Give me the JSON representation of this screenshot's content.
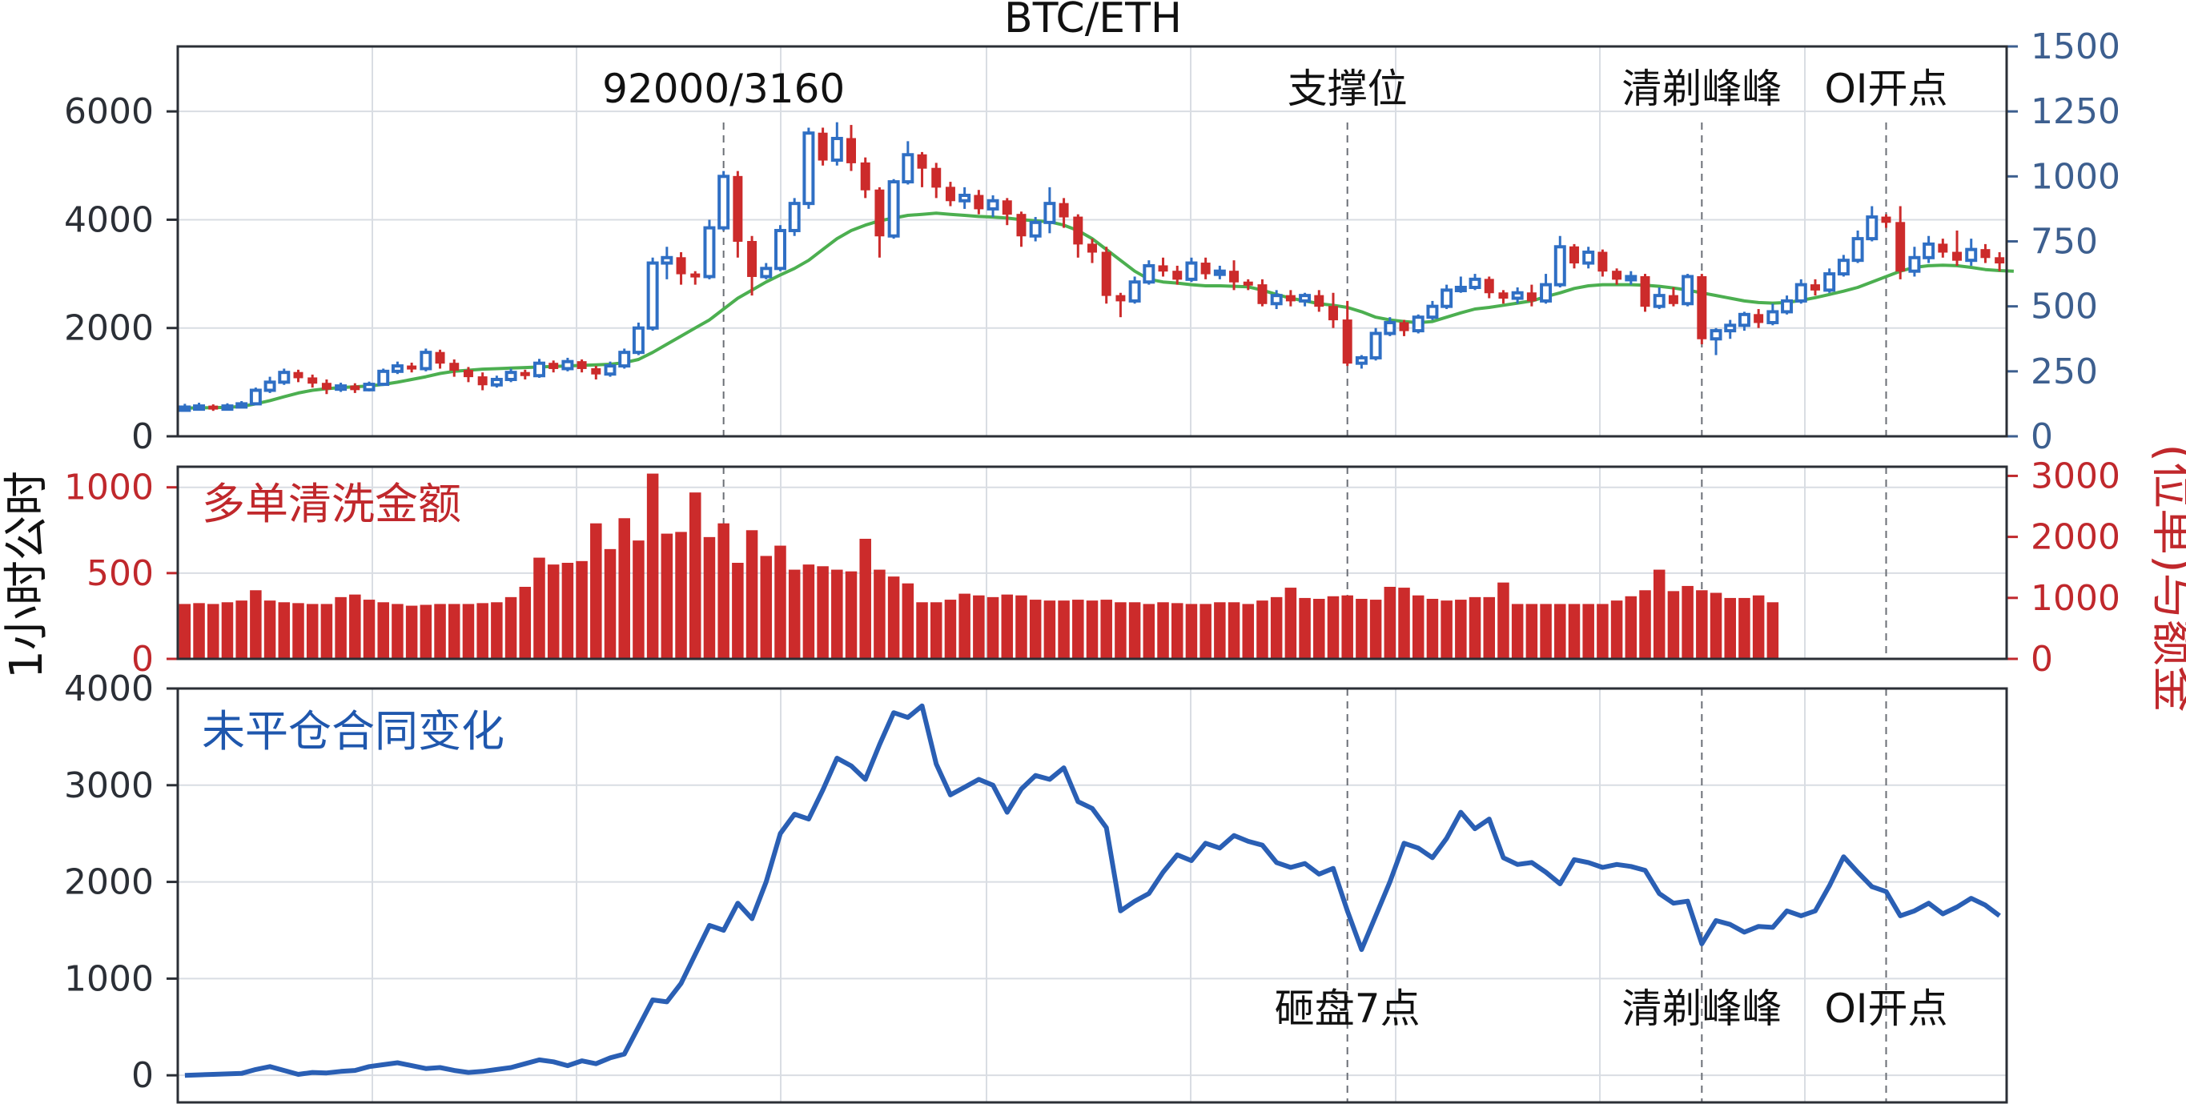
{
  "title": "BTC/ETH",
  "colors": {
    "up": "#2f6fc4",
    "down": "#cc2b2b",
    "ma": "#4caf50",
    "oi": "#2a5fb4",
    "right_axis": "#3d5f8f",
    "liq_axis": "#c0282c",
    "text": "#2b2f36"
  },
  "chart_data": [
    {
      "type": "candlestick",
      "panel": "price",
      "ylim_left": [
        0,
        7200
      ],
      "yticks_left": [
        "0",
        "2000",
        "4000",
        "6000"
      ],
      "ylim_right": [
        0,
        1500
      ],
      "yticks_right": [
        "0",
        "250",
        "500",
        "750",
        "1000",
        "1250",
        "1500"
      ],
      "candles": [
        [
          520,
          540,
          460,
          600
        ],
        [
          540,
          560,
          480,
          620
        ],
        [
          560,
          530,
          470,
          590
        ],
        [
          530,
          560,
          490,
          610
        ],
        [
          560,
          600,
          520,
          650
        ],
        [
          600,
          850,
          580,
          900
        ],
        [
          850,
          1000,
          800,
          1100
        ],
        [
          1000,
          1180,
          950,
          1250
        ],
        [
          1180,
          1080,
          1000,
          1230
        ],
        [
          1080,
          980,
          900,
          1140
        ],
        [
          980,
          870,
          780,
          1050
        ],
        [
          870,
          930,
          820,
          990
        ],
        [
          930,
          860,
          800,
          980
        ],
        [
          860,
          960,
          830,
          1010
        ],
        [
          960,
          1200,
          930,
          1250
        ],
        [
          1200,
          1300,
          1150,
          1380
        ],
        [
          1300,
          1250,
          1180,
          1360
        ],
        [
          1250,
          1550,
          1200,
          1620
        ],
        [
          1550,
          1350,
          1250,
          1600
        ],
        [
          1350,
          1220,
          1100,
          1420
        ],
        [
          1220,
          1100,
          1000,
          1280
        ],
        [
          1100,
          950,
          850,
          1180
        ],
        [
          950,
          1050,
          900,
          1120
        ],
        [
          1050,
          1180,
          1000,
          1250
        ],
        [
          1180,
          1120,
          1050,
          1230
        ],
        [
          1120,
          1350,
          1080,
          1430
        ],
        [
          1350,
          1250,
          1180,
          1400
        ],
        [
          1250,
          1380,
          1200,
          1450
        ],
        [
          1380,
          1250,
          1180,
          1420
        ],
        [
          1250,
          1150,
          1050,
          1300
        ],
        [
          1150,
          1300,
          1100,
          1380
        ],
        [
          1300,
          1550,
          1250,
          1620
        ],
        [
          1550,
          2000,
          1500,
          2100
        ],
        [
          2000,
          3200,
          1950,
          3300
        ],
        [
          3200,
          3300,
          2900,
          3500
        ],
        [
          3300,
          3000,
          2800,
          3400
        ],
        [
          3000,
          2950,
          2800,
          3050
        ],
        [
          2950,
          3850,
          2900,
          4000
        ],
        [
          3850,
          4800,
          3800,
          4900
        ],
        [
          4800,
          3600,
          3300,
          4900
        ],
        [
          3600,
          2950,
          2600,
          3700
        ],
        [
          2950,
          3100,
          2900,
          3200
        ],
        [
          3100,
          3800,
          3050,
          3900
        ],
        [
          3800,
          4300,
          3700,
          4400
        ],
        [
          4300,
          5600,
          4200,
          5700
        ],
        [
          5600,
          5100,
          5000,
          5700
        ],
        [
          5100,
          5500,
          5000,
          5800
        ],
        [
          5500,
          5050,
          4900,
          5750
        ],
        [
          5050,
          4550,
          4400,
          5150
        ],
        [
          4550,
          3700,
          3300,
          4600
        ],
        [
          3700,
          4700,
          3650,
          4750
        ],
        [
          4700,
          5200,
          4650,
          5450
        ],
        [
          5200,
          4950,
          4600,
          5250
        ],
        [
          4950,
          4600,
          4400,
          5050
        ],
        [
          4600,
          4350,
          4250,
          4700
        ],
        [
          4350,
          4450,
          4200,
          4600
        ],
        [
          4450,
          4200,
          4100,
          4550
        ],
        [
          4200,
          4350,
          4050,
          4450
        ],
        [
          4350,
          4100,
          3900,
          4400
        ],
        [
          4100,
          3700,
          3500,
          4150
        ],
        [
          3700,
          3950,
          3600,
          4050
        ],
        [
          3950,
          4300,
          3750,
          4600
        ],
        [
          4300,
          4050,
          3850,
          4400
        ],
        [
          4050,
          3550,
          3300,
          4100
        ],
        [
          3550,
          3400,
          3200,
          3650
        ],
        [
          3400,
          2600,
          2450,
          3500
        ],
        [
          2600,
          2500,
          2200,
          2650
        ],
        [
          2500,
          2850,
          2450,
          2950
        ],
        [
          2850,
          3150,
          2800,
          3250
        ],
        [
          3150,
          3050,
          2950,
          3300
        ],
        [
          3050,
          2900,
          2800,
          3150
        ],
        [
          2900,
          3200,
          2850,
          3300
        ],
        [
          3200,
          3000,
          2900,
          3300
        ],
        [
          3000,
          3050,
          2900,
          3150
        ],
        [
          3050,
          2850,
          2700,
          3250
        ],
        [
          2850,
          2800,
          2700,
          2900
        ],
        [
          2800,
          2450,
          2400,
          2900
        ],
        [
          2450,
          2600,
          2350,
          2700
        ],
        [
          2600,
          2500,
          2400,
          2700
        ],
        [
          2500,
          2600,
          2400,
          2650
        ],
        [
          2600,
          2400,
          2300,
          2700
        ],
        [
          2400,
          2150,
          2000,
          2650
        ],
        [
          2150,
          1350,
          1300,
          2500
        ],
        [
          1350,
          1450,
          1250,
          1500
        ],
        [
          1450,
          1900,
          1400,
          2000
        ],
        [
          1900,
          2100,
          1850,
          2200
        ],
        [
          2100,
          1950,
          1850,
          2150
        ],
        [
          1950,
          2200,
          1900,
          2250
        ],
        [
          2200,
          2400,
          2150,
          2500
        ],
        [
          2400,
          2700,
          2350,
          2800
        ],
        [
          2700,
          2750,
          2650,
          2950
        ],
        [
          2750,
          2900,
          2700,
          3000
        ],
        [
          2900,
          2650,
          2550,
          2950
        ],
        [
          2650,
          2550,
          2450,
          2700
        ],
        [
          2550,
          2650,
          2450,
          2750
        ],
        [
          2650,
          2500,
          2400,
          2800
        ],
        [
          2500,
          2800,
          2450,
          3000
        ],
        [
          2800,
          3500,
          2750,
          3700
        ],
        [
          3500,
          3200,
          3100,
          3550
        ],
        [
          3200,
          3400,
          3100,
          3500
        ],
        [
          3400,
          3050,
          2950,
          3450
        ],
        [
          3050,
          2900,
          2800,
          3100
        ],
        [
          2900,
          2950,
          2800,
          3050
        ],
        [
          2950,
          2400,
          2300,
          3000
        ],
        [
          2400,
          2600,
          2350,
          2750
        ],
        [
          2600,
          2450,
          2400,
          2750
        ],
        [
          2450,
          2950,
          2400,
          3000
        ],
        [
          2950,
          1800,
          1700,
          3000
        ],
        [
          1800,
          1950,
          1500,
          2000
        ],
        [
          1950,
          2050,
          1800,
          2150
        ],
        [
          2050,
          2250,
          1950,
          2300
        ],
        [
          2250,
          2100,
          2000,
          2350
        ],
        [
          2100,
          2300,
          2050,
          2450
        ],
        [
          2300,
          2500,
          2250,
          2600
        ],
        [
          2500,
          2800,
          2450,
          2900
        ],
        [
          2800,
          2700,
          2600,
          2900
        ],
        [
          2700,
          3000,
          2650,
          3100
        ],
        [
          3000,
          3250,
          2950,
          3350
        ],
        [
          3250,
          3650,
          3200,
          3800
        ],
        [
          3650,
          4050,
          3600,
          4250
        ],
        [
          4050,
          3950,
          3850,
          4100
        ],
        [
          3950,
          3050,
          2900,
          4250
        ],
        [
          3050,
          3300,
          2950,
          3500
        ],
        [
          3300,
          3550,
          3200,
          3700
        ],
        [
          3550,
          3400,
          3300,
          3650
        ],
        [
          3400,
          3250,
          3150,
          3800
        ],
        [
          3250,
          3450,
          3150,
          3650
        ],
        [
          3450,
          3300,
          3200,
          3550
        ],
        [
          3300,
          3200,
          3050,
          3400
        ]
      ],
      "ma": [
        520,
        525,
        530,
        535,
        550,
        600,
        660,
        730,
        800,
        850,
        880,
        900,
        915,
        930,
        960,
        1000,
        1050,
        1100,
        1160,
        1200,
        1220,
        1240,
        1250,
        1260,
        1270,
        1280,
        1290,
        1300,
        1310,
        1320,
        1330,
        1360,
        1420,
        1550,
        1700,
        1850,
        2000,
        2150,
        2350,
        2550,
        2700,
        2850,
        2980,
        3100,
        3250,
        3450,
        3650,
        3800,
        3900,
        3980,
        4030,
        4080,
        4100,
        4120,
        4100,
        4080,
        4060,
        4050,
        4030,
        4000,
        3980,
        3960,
        3900,
        3800,
        3650,
        3450,
        3250,
        3050,
        2900,
        2850,
        2830,
        2800,
        2780,
        2780,
        2770,
        2760,
        2700,
        2620,
        2550,
        2500,
        2450,
        2420,
        2380,
        2300,
        2200,
        2150,
        2120,
        2100,
        2120,
        2200,
        2280,
        2350,
        2380,
        2420,
        2460,
        2500,
        2580,
        2650,
        2730,
        2780,
        2800,
        2800,
        2800,
        2790,
        2770,
        2740,
        2700,
        2650,
        2600,
        2550,
        2500,
        2470,
        2460,
        2470,
        2510,
        2560,
        2620,
        2680,
        2750,
        2850,
        2950,
        3050,
        3120,
        3150,
        3160,
        3150,
        3120,
        3080,
        3060,
        3050
      ],
      "annotations": [
        {
          "label": "92000/3160",
          "index": 38
        },
        {
          "label": "支撑位",
          "index": 82
        },
        {
          "label": "清剃峰峰",
          "index": 107
        },
        {
          "label": "OI开点",
          "index": 120
        }
      ]
    },
    {
      "type": "bar",
      "panel": "liquidations",
      "label": "多单清洗金额",
      "ylim_left": [
        0,
        1120
      ],
      "yticks_left": [
        "0",
        "500",
        "1000"
      ],
      "ylim_right": [
        0,
        3150
      ],
      "yticks_right": [
        "0",
        "1000",
        "2000",
        "3000"
      ],
      "values": [
        320,
        325,
        320,
        330,
        340,
        400,
        340,
        330,
        325,
        320,
        320,
        360,
        375,
        345,
        330,
        320,
        310,
        315,
        320,
        320,
        320,
        325,
        330,
        360,
        420,
        590,
        550,
        560,
        570,
        790,
        640,
        820,
        690,
        1080,
        730,
        740,
        970,
        710,
        790,
        560,
        750,
        600,
        660,
        520,
        550,
        540,
        520,
        510,
        700,
        520,
        480,
        440,
        330,
        330,
        345,
        380,
        370,
        360,
        375,
        370,
        345,
        340,
        340,
        345,
        340,
        345,
        330,
        330,
        320,
        330,
        325,
        320,
        320,
        330,
        330,
        320,
        340,
        360,
        415,
        355,
        350,
        365,
        370,
        350,
        345,
        420,
        415,
        370,
        350,
        340,
        345,
        360,
        360,
        445,
        320,
        320,
        320,
        320,
        320,
        320,
        320,
        340,
        365,
        400,
        520,
        395,
        425,
        400,
        385,
        355,
        355,
        370,
        330
      ]
    },
    {
      "type": "line",
      "panel": "open_interest",
      "label": "未平仓合同变化",
      "ylim": [
        -280,
        4000
      ],
      "yticks": [
        "0",
        "1000",
        "2000",
        "3000",
        "4000"
      ],
      "values": [
        0,
        5,
        10,
        15,
        20,
        60,
        90,
        50,
        10,
        30,
        25,
        40,
        50,
        90,
        110,
        130,
        100,
        70,
        80,
        50,
        30,
        40,
        60,
        80,
        120,
        160,
        140,
        100,
        150,
        120,
        180,
        220,
        500,
        780,
        760,
        950,
        1250,
        1550,
        1500,
        1780,
        1620,
        2000,
        2500,
        2700,
        2650,
        2950,
        3280,
        3200,
        3060,
        3420,
        3750,
        3700,
        3820,
        3220,
        2900,
        2980,
        3060,
        3000,
        2720,
        2960,
        3100,
        3060,
        3180,
        2830,
        2760,
        2560,
        1700,
        1800,
        1880,
        2100,
        2280,
        2220,
        2400,
        2350,
        2480,
        2420,
        2380,
        2200,
        2150,
        2190,
        2080,
        2140,
        1700,
        1300,
        1650,
        2000,
        2400,
        2350,
        2250,
        2450,
        2720,
        2550,
        2650,
        2250,
        2180,
        2200,
        2100,
        1980,
        2230,
        2200,
        2150,
        2180,
        2160,
        2120,
        1880,
        1780,
        1800,
        1360,
        1600,
        1560,
        1480,
        1540,
        1530,
        1700,
        1650,
        1700,
        1960,
        2260,
        2100,
        1950,
        1900,
        1650,
        1700,
        1780,
        1670,
        1740,
        1830,
        1760,
        1650
      ],
      "annotations": [
        {
          "label": "砸盘7点",
          "index": 82
        },
        {
          "label": "清剃峰峰",
          "index": 107
        },
        {
          "label": "OI开点",
          "index": 120
        }
      ]
    }
  ],
  "axis_labels": {
    "left": "1小时公时",
    "right": "(位单)与额金"
  }
}
